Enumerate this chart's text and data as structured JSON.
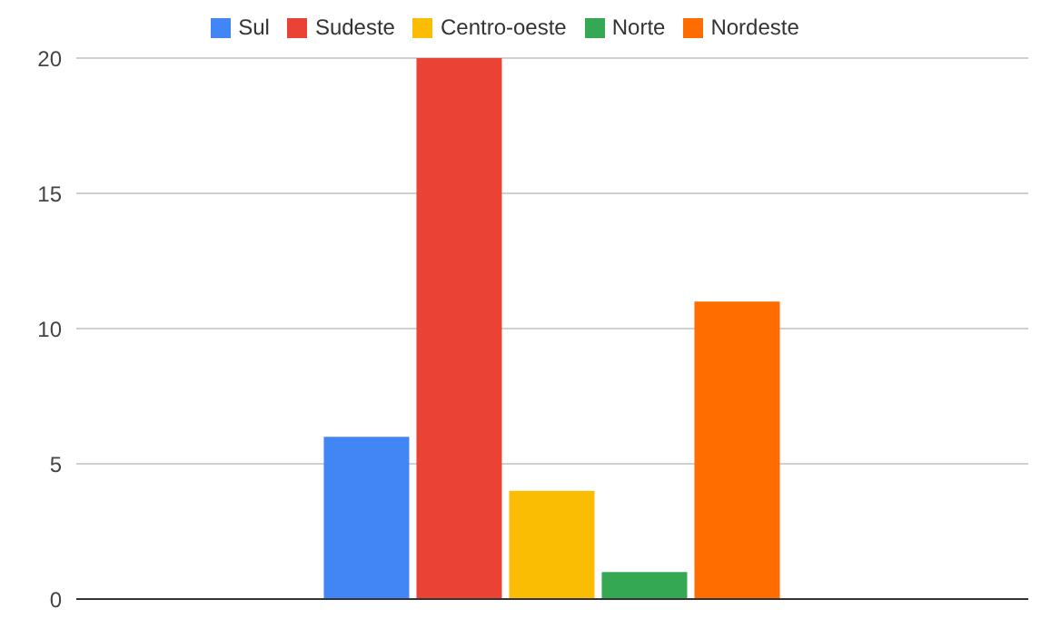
{
  "chart_data": {
    "type": "bar",
    "categories": [
      null
    ],
    "series": [
      {
        "name": "Sul",
        "color": "#4285f4",
        "values": [
          6
        ]
      },
      {
        "name": "Sudeste",
        "color": "#ea4335",
        "values": [
          20
        ]
      },
      {
        "name": "Centro-oeste",
        "color": "#fbbc04",
        "values": [
          4
        ]
      },
      {
        "name": "Norte",
        "color": "#34a853",
        "values": [
          1
        ]
      },
      {
        "name": "Nordeste",
        "color": "#ff6d01",
        "values": [
          11
        ]
      }
    ],
    "ylim": [
      0,
      20
    ],
    "yticks": [
      0,
      5,
      10,
      15,
      20
    ],
    "grid": "y",
    "legend": "top"
  }
}
